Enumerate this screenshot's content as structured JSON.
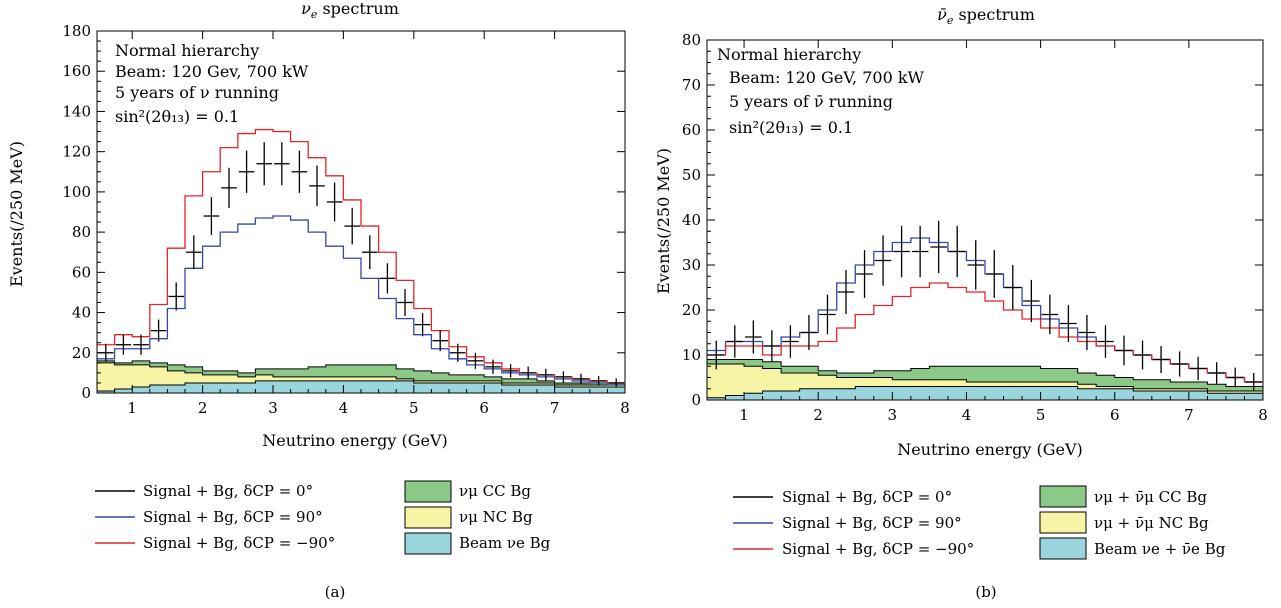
{
  "colors": {
    "cc": "#8cc887",
    "nc": "#f7f4a6",
    "beam": "#9ad4dd",
    "line0": "#000000",
    "line90": "#3447a8",
    "linem90": "#e2252b",
    "axis": "#000000"
  },
  "chart_data": [
    {
      "type": "histogram",
      "panel": "(a)",
      "title_main": "ν",
      "title_sub": "e",
      "title_rest": " spectrum",
      "xlabel": "Neutrino energy (GeV)",
      "ylabel": "Events(/250 MeV)",
      "xlim": [
        0.5,
        8
      ],
      "ylim": [
        0,
        180
      ],
      "xticks": [
        1,
        2,
        3,
        4,
        5,
        6,
        7,
        8
      ],
      "yticks": [
        0,
        20,
        40,
        60,
        80,
        100,
        120,
        140,
        160,
        180
      ],
      "bin_edges": [
        0.5,
        0.75,
        1.0,
        1.25,
        1.5,
        1.75,
        2.0,
        2.25,
        2.5,
        2.75,
        3.0,
        3.25,
        3.5,
        3.75,
        4.0,
        4.25,
        4.5,
        4.75,
        5.0,
        5.25,
        5.5,
        5.75,
        6.0,
        6.25,
        6.5,
        6.75,
        7.0,
        7.25,
        7.5,
        7.75,
        8.0
      ],
      "annotations": [
        "Normal hierarchy",
        "Beam: 120 Gev, 700 kW",
        "5 years of ν running",
        "sin²(2θ₁₃) = 0.1"
      ],
      "series": [
        {
          "name": "Signal + Bg, δCP = 0°",
          "kind": "data_points",
          "values": [
            20,
            24,
            24,
            31,
            48,
            70,
            88,
            102,
            110,
            114,
            114,
            110,
            103,
            95,
            83,
            70,
            57,
            45,
            34,
            26,
            20,
            16,
            13,
            11,
            10,
            9,
            8,
            7,
            6,
            5
          ],
          "errors": [
            4.5,
            5,
            5,
            5.5,
            7,
            8.4,
            9.4,
            10,
            10.5,
            10.7,
            10.7,
            10.5,
            10.1,
            9.7,
            9.1,
            8.4,
            7.5,
            6.7,
            5.8,
            5.1,
            4.5,
            4,
            3.6,
            3.3,
            3.2,
            3,
            2.8,
            2.6,
            2.4,
            2.2
          ]
        },
        {
          "name": "Signal + Bg, δCP = 90°",
          "kind": "step",
          "values": [
            17,
            22,
            22,
            27,
            42,
            62,
            73,
            80,
            84,
            87,
            88,
            86,
            80,
            73,
            67,
            57,
            47,
            37,
            29,
            22,
            17,
            14,
            12,
            10,
            9,
            8,
            7,
            6,
            5,
            4
          ]
        },
        {
          "name": "Signal + Bg, δCP = −90°",
          "kind": "step",
          "values": [
            24,
            29,
            28,
            44,
            72,
            98,
            110,
            122,
            129,
            131,
            130,
            125,
            117,
            108,
            96,
            83,
            70,
            56,
            42,
            31,
            23,
            18,
            15,
            12,
            10,
            9,
            8,
            7,
            6,
            5
          ]
        },
        {
          "name": "νμ CC Bg",
          "kind": "stack",
          "values": [
            1,
            1,
            2,
            2,
            3,
            3,
            2,
            2,
            2,
            3,
            4,
            4,
            5,
            6,
            6,
            6,
            6,
            5,
            5,
            4,
            3,
            3,
            2,
            2,
            2,
            1,
            1,
            1,
            1,
            1
          ]
        },
        {
          "name": "νμ NC Bg",
          "kind": "stack",
          "values": [
            14,
            12,
            11,
            9,
            7,
            5,
            4,
            4,
            3,
            3,
            2,
            2,
            2,
            2,
            2,
            2,
            2,
            1,
            1,
            1,
            1,
            1,
            1,
            1,
            1,
            1,
            1,
            1,
            1,
            1
          ]
        },
        {
          "name": "Beam νe Bg",
          "kind": "stack",
          "values": [
            1,
            2,
            3,
            4,
            4,
            5,
            5,
            5,
            5,
            6,
            6,
            6,
            6,
            6,
            6,
            6,
            6,
            6,
            5,
            5,
            5,
            5,
            5,
            4,
            4,
            4,
            3,
            3,
            3,
            3
          ]
        }
      ],
      "legend": {
        "lines": [
          "Signal + Bg, δCP = 0°",
          "Signal + Bg, δCP = 90°",
          "Signal + Bg, δCP = −90°"
        ],
        "boxes": [
          "νμ CC Bg",
          "νμ NC Bg",
          "Beam νe Bg"
        ]
      }
    },
    {
      "type": "histogram",
      "panel": "(b)",
      "title_main": "ν̄",
      "title_sub": "e",
      "title_rest": " spectrum",
      "xlabel": "Neutrino energy (GeV)",
      "ylabel": "Events(/250 MeV)",
      "xlim": [
        0.5,
        8
      ],
      "ylim": [
        0,
        80
      ],
      "xticks": [
        1,
        2,
        3,
        4,
        5,
        6,
        7,
        8
      ],
      "yticks": [
        0,
        10,
        20,
        30,
        40,
        50,
        60,
        70,
        80
      ],
      "bin_edges": [
        0.5,
        0.75,
        1.0,
        1.25,
        1.5,
        1.75,
        2.0,
        2.25,
        2.5,
        2.75,
        3.0,
        3.25,
        3.5,
        3.75,
        4.0,
        4.25,
        4.5,
        4.75,
        5.0,
        5.25,
        5.5,
        5.75,
        6.0,
        6.25,
        6.5,
        6.75,
        7.0,
        7.25,
        7.5,
        7.75,
        8.0
      ],
      "annotations": [
        "Normal hierarchy",
        "Beam: 120 GeV, 700 kW",
        "5 years of ν̄ running",
        "sin²(2θ₁₃) = 0.1"
      ],
      "series": [
        {
          "name": "Signal + Bg, δCP = 0°",
          "kind": "data_points",
          "values": [
            10,
            13,
            14,
            12,
            13,
            15,
            19,
            24,
            28,
            31,
            33,
            33,
            34,
            33,
            30,
            28,
            25,
            22,
            19,
            17,
            15,
            13,
            11,
            10,
            9,
            8,
            7,
            6,
            5,
            4
          ],
          "errors": [
            3.2,
            3.6,
            3.7,
            3.5,
            3.6,
            3.9,
            4.4,
            4.9,
            5.3,
            5.6,
            5.7,
            5.7,
            5.8,
            5.7,
            5.5,
            5.3,
            5,
            4.7,
            4.4,
            4.1,
            3.9,
            3.6,
            3.3,
            3.2,
            3,
            2.8,
            2.6,
            2.4,
            2.2,
            2
          ]
        },
        {
          "name": "Signal + Bg, δCP = 90°",
          "kind": "step",
          "values": [
            11,
            13,
            13,
            12,
            14,
            15,
            20,
            26,
            30,
            33,
            35,
            36,
            35,
            33,
            31,
            28,
            25,
            21,
            18,
            16,
            14,
            12,
            11,
            10,
            9,
            8,
            7,
            6,
            5,
            4
          ]
        },
        {
          "name": "Signal + Bg, δCP = −90°",
          "kind": "step",
          "values": [
            10,
            12,
            12,
            10,
            12,
            12,
            13,
            16,
            19,
            21,
            23,
            25,
            26,
            25,
            24,
            22,
            20,
            18,
            16,
            14,
            13,
            12,
            11,
            10,
            9,
            8,
            7,
            6,
            5,
            4
          ]
        },
        {
          "name": "νμ + ν̄μ CC Bg",
          "kind": "stack",
          "values": [
            1,
            1,
            1.5,
            1.5,
            1.5,
            1.5,
            1,
            1,
            1,
            1.5,
            2,
            2.5,
            3,
            3,
            3.5,
            3.5,
            3.5,
            3.5,
            3,
            3,
            2.5,
            2.5,
            2,
            2,
            2,
            1.5,
            1.5,
            1.5,
            1,
            1
          ]
        },
        {
          "name": "νμ + ν̄μ NC Bg",
          "kind": "stack",
          "values": [
            7.5,
            7,
            6,
            5,
            4,
            3.5,
            3,
            2.5,
            2,
            2,
            1.5,
            1.5,
            1.5,
            1.5,
            1,
            1,
            1,
            1,
            1,
            1,
            1,
            0.5,
            0.5,
            0.5,
            0.5,
            0.5,
            0.5,
            0.5,
            0.5,
            0.5
          ]
        },
        {
          "name": "Beam νe + ν̄e Bg",
          "kind": "stack",
          "values": [
            0.5,
            1,
            1.5,
            2,
            2,
            2.5,
            2.5,
            2.5,
            3,
            3,
            3,
            3,
            3,
            3,
            3,
            3,
            3,
            3,
            3,
            3,
            2.5,
            2.5,
            2.5,
            2,
            2,
            2,
            2,
            1.5,
            1.5,
            1.5
          ]
        }
      ],
      "legend": {
        "lines": [
          "Signal + Bg, δCP = 0°",
          "Signal + Bg, δCP = 90°",
          "Signal + Bg, δCP = −90°"
        ],
        "boxes": [
          "νμ + ν̄μ CC Bg",
          "νμ + ν̄μ NC Bg",
          "Beam νe + ν̄e Bg"
        ]
      }
    }
  ]
}
